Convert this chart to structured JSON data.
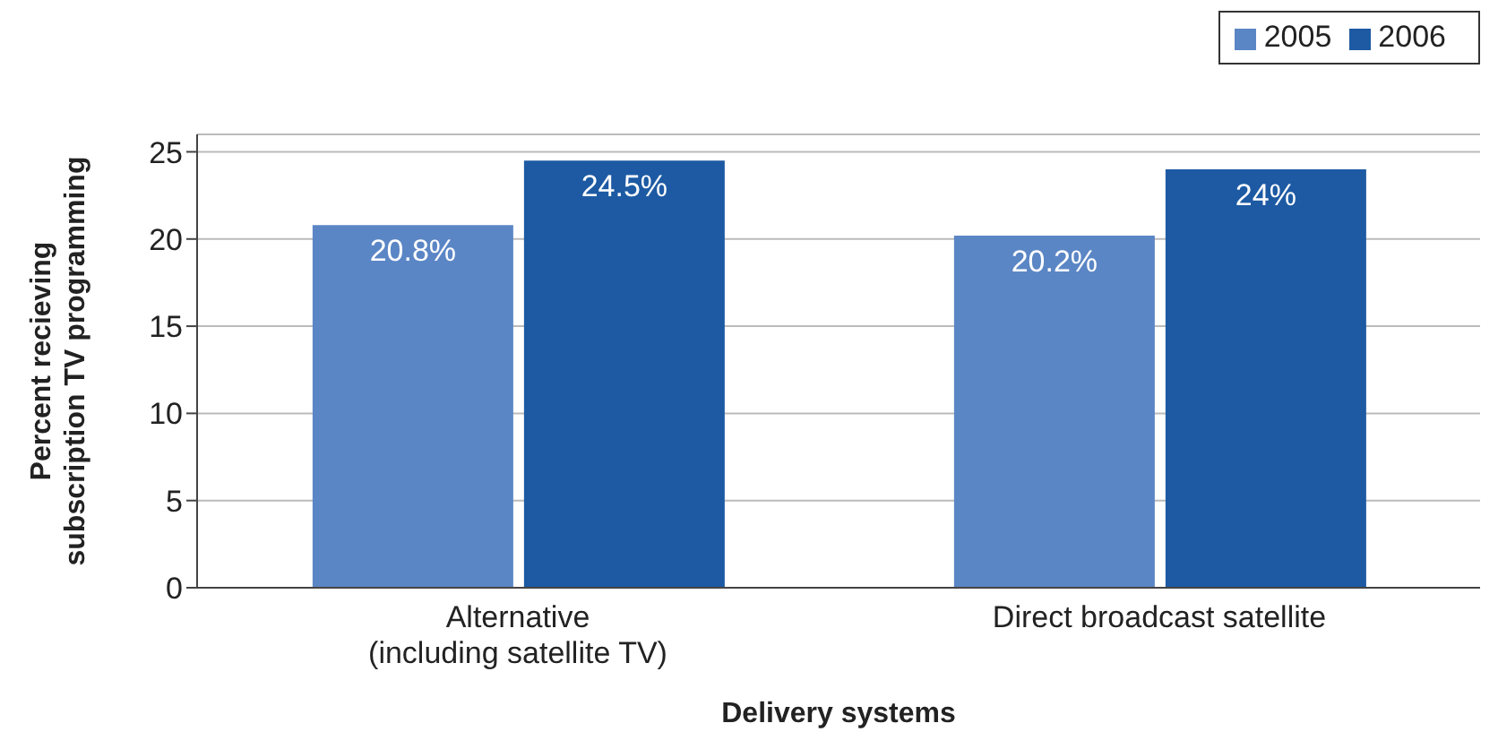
{
  "chart_data": {
    "type": "bar",
    "xlabel": "Delivery systems",
    "ylabel": "Percent recieving\nsubscription TV programming",
    "categories": [
      "Alternative\n(including satellite TV)",
      "Direct broadcast satellite"
    ],
    "series": [
      {
        "name": "2005",
        "color": "#5b86c5",
        "values": [
          20.8,
          20.2
        ],
        "value_labels": [
          "20.8%",
          "20.2%"
        ]
      },
      {
        "name": "2006",
        "color": "#1d5aa3",
        "values": [
          24.5,
          24
        ],
        "value_labels": [
          "24.5%",
          "24%"
        ]
      }
    ],
    "ylim": [
      0,
      26
    ],
    "yticks": [
      0,
      5,
      10,
      15,
      20,
      25
    ],
    "grid": "y",
    "legend": "top right"
  }
}
